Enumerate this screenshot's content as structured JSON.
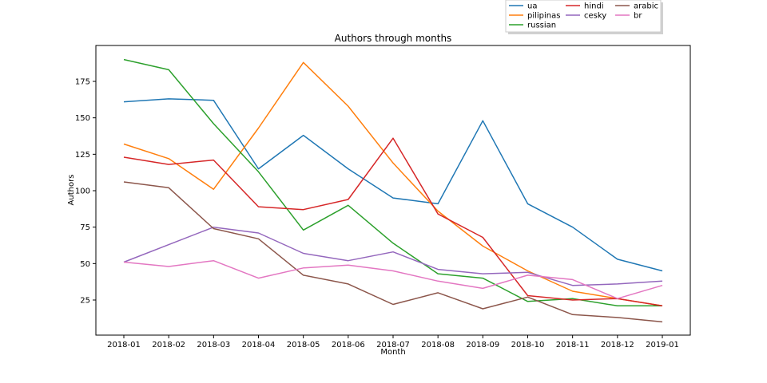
{
  "chart_data": {
    "type": "line",
    "title": "Authors through months",
    "xlabel": "Month",
    "ylabel": "Authors",
    "ylim": [
      0,
      200
    ],
    "yticks": [
      25,
      50,
      75,
      100,
      125,
      150,
      175
    ],
    "categories": [
      "2018-01",
      "2018-02",
      "2018-03",
      "2018-04",
      "2018-05",
      "2018-06",
      "2018-07",
      "2018-08",
      "2018-09",
      "2018-10",
      "2018-11",
      "2018-12",
      "2019-01"
    ],
    "legend_position": "top-right",
    "series": [
      {
        "name": "ua",
        "color": "#1f77b4",
        "values": [
          161,
          163,
          162,
          115,
          138,
          115,
          95,
          91,
          148,
          91,
          75,
          53,
          45
        ]
      },
      {
        "name": "pilipinas",
        "color": "#ff7f0e",
        "values": [
          132,
          122,
          101,
          143,
          188,
          158,
          119,
          86,
          62,
          45,
          31,
          26,
          21
        ]
      },
      {
        "name": "russian",
        "color": "#2ca02c",
        "values": [
          190,
          183,
          146,
          113,
          73,
          90,
          64,
          43,
          40,
          24,
          26,
          21,
          21
        ]
      },
      {
        "name": "hindi",
        "color": "#d62728",
        "values": [
          123,
          118,
          121,
          89,
          87,
          94,
          136,
          84,
          68,
          28,
          25,
          26,
          21
        ]
      },
      {
        "name": "cesky",
        "color": "#9467bd",
        "values": [
          51,
          63,
          75,
          71,
          57,
          52,
          58,
          46,
          43,
          44,
          35,
          36,
          38
        ]
      },
      {
        "name": "arabic",
        "color": "#8c564b",
        "values": [
          106,
          102,
          74,
          67,
          42,
          36,
          22,
          30,
          19,
          27,
          15,
          13,
          10
        ]
      },
      {
        "name": "br",
        "color": "#e377c2",
        "values": [
          51,
          48,
          52,
          40,
          47,
          49,
          45,
          38,
          33,
          42,
          39,
          26,
          35
        ]
      }
    ]
  }
}
